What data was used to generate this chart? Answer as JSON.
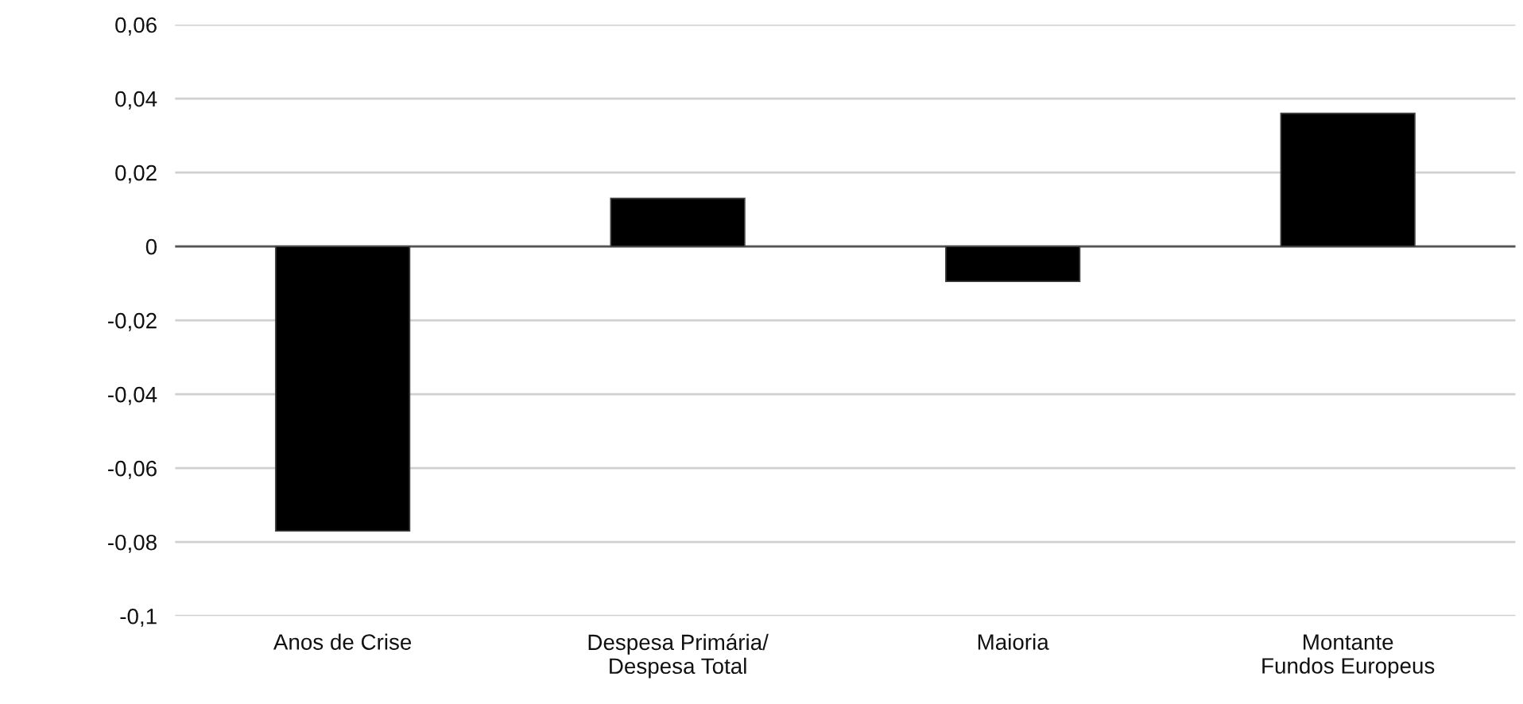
{
  "chart_data": {
    "type": "bar",
    "categories": [
      "Anos de Crise",
      "Despesa Primária/\nDespesa Total",
      "Maioria",
      "Montante\nFundos Europeus"
    ],
    "values": [
      -0.077,
      0.013,
      -0.0095,
      0.036
    ],
    "colors": [
      "#000000",
      "#000000",
      "#000000",
      "#000000"
    ],
    "ylim": [
      -0.1,
      0.06
    ],
    "yticks": [
      {
        "value": -0.1,
        "label": "-0,1"
      },
      {
        "value": -0.08,
        "label": "-0,08"
      },
      {
        "value": -0.06,
        "label": "-0,06"
      },
      {
        "value": -0.04,
        "label": "-0,04"
      },
      {
        "value": -0.02,
        "label": "-0,02"
      },
      {
        "value": 0,
        "label": "0"
      },
      {
        "value": 0.02,
        "label": "0,02"
      },
      {
        "value": 0.04,
        "label": "0,04"
      },
      {
        "value": 0.06,
        "label": "0,06"
      }
    ],
    "grid": "y"
  }
}
